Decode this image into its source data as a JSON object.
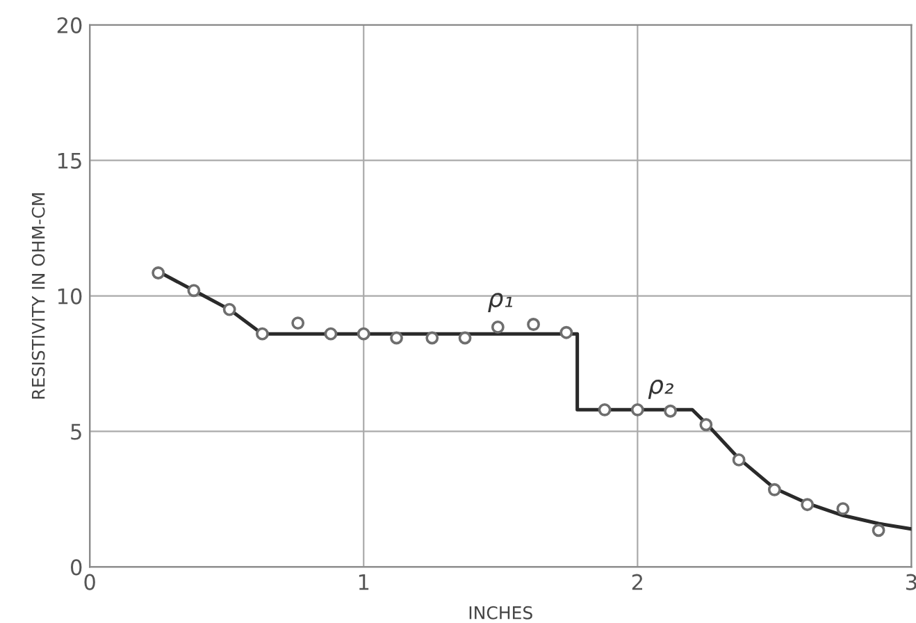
{
  "chart_data": {
    "type": "scatter",
    "xlabel": "INCHES",
    "ylabel": "RESISTIVITY IN OHM-CM",
    "xlim": [
      0,
      3
    ],
    "xticks": [
      0,
      1,
      2,
      3
    ],
    "ylim": [
      0,
      20
    ],
    "yticks": [
      0,
      5,
      10,
      15,
      20
    ],
    "grid": true,
    "annotations": [
      "ρ₁",
      "ρ₂"
    ],
    "series": [
      {
        "type": "line",
        "color": "#2a2a2a",
        "marker": "none",
        "x": [
          0.25,
          0.38,
          0.51,
          0.63,
          1.78,
          1.78,
          2.2,
          2.25,
          2.37,
          2.5,
          2.62,
          2.75,
          2.88,
          3.0
        ],
        "values": [
          10.9,
          10.2,
          9.5,
          8.6,
          8.6,
          5.8,
          5.8,
          5.3,
          4.0,
          2.9,
          2.35,
          1.9,
          1.6,
          1.4
        ]
      },
      {
        "color": "#6e6e6e",
        "marker": "circle",
        "x": [
          0.25,
          0.38,
          0.51,
          0.63,
          0.76,
          0.88,
          1.0,
          1.12,
          1.25,
          1.37,
          1.49,
          1.62,
          1.74,
          1.88,
          2.0,
          2.12,
          2.25,
          2.37,
          2.5,
          2.62,
          2.75,
          2.88
        ],
        "values": [
          10.85,
          10.2,
          9.5,
          8.6,
          9.0,
          8.6,
          8.6,
          8.45,
          8.45,
          8.45,
          8.85,
          8.95,
          8.65,
          5.8,
          5.8,
          5.75,
          5.25,
          3.95,
          2.85,
          2.3,
          2.15,
          1.35
        ]
      }
    ]
  }
}
